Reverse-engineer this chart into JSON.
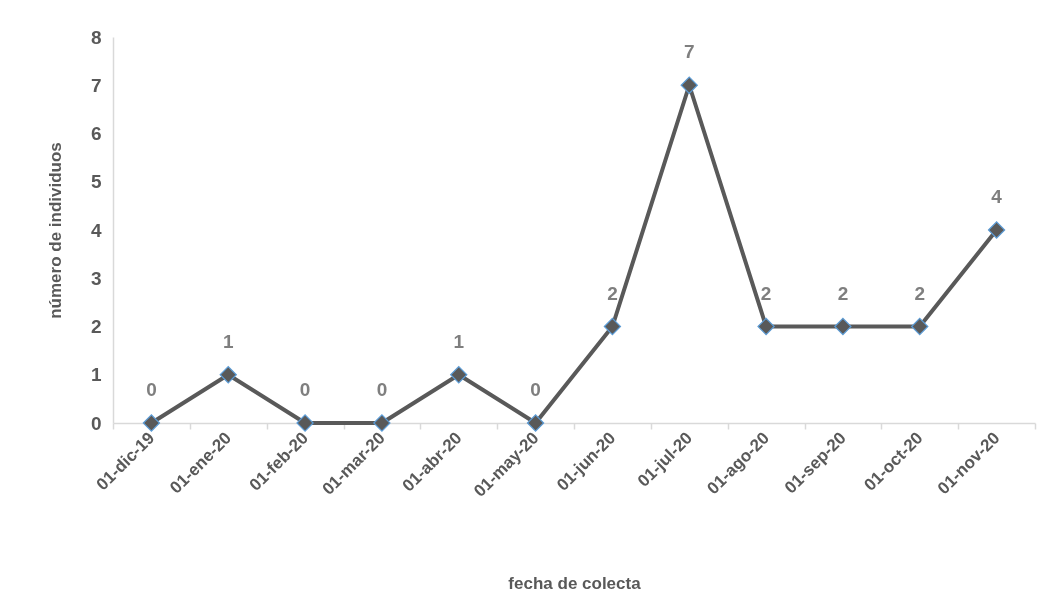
{
  "chart_data": {
    "type": "line",
    "xlabel": "fecha de colecta",
    "ylabel": "número de individuos",
    "categories": [
      "01-dic-19",
      "01-ene-20",
      "01-feb-20",
      "01-mar-20",
      "01-abr-20",
      "01-may-20",
      "01-jun-20",
      "01-jul-20",
      "01-ago-20",
      "01-sep-20",
      "01-oct-20",
      "01-nov-20"
    ],
    "series": [
      {
        "color": "#595959",
        "values": [
          0,
          1,
          0,
          0,
          1,
          0,
          2,
          7,
          2,
          2,
          2,
          4
        ]
      }
    ],
    "ylim": [
      0,
      8
    ],
    "yticks": [
      0,
      1,
      2,
      3,
      4,
      5,
      6,
      7,
      8
    ],
    "data_labels": true,
    "marker": "diamond",
    "line_style": "solid",
    "grid": false
  }
}
